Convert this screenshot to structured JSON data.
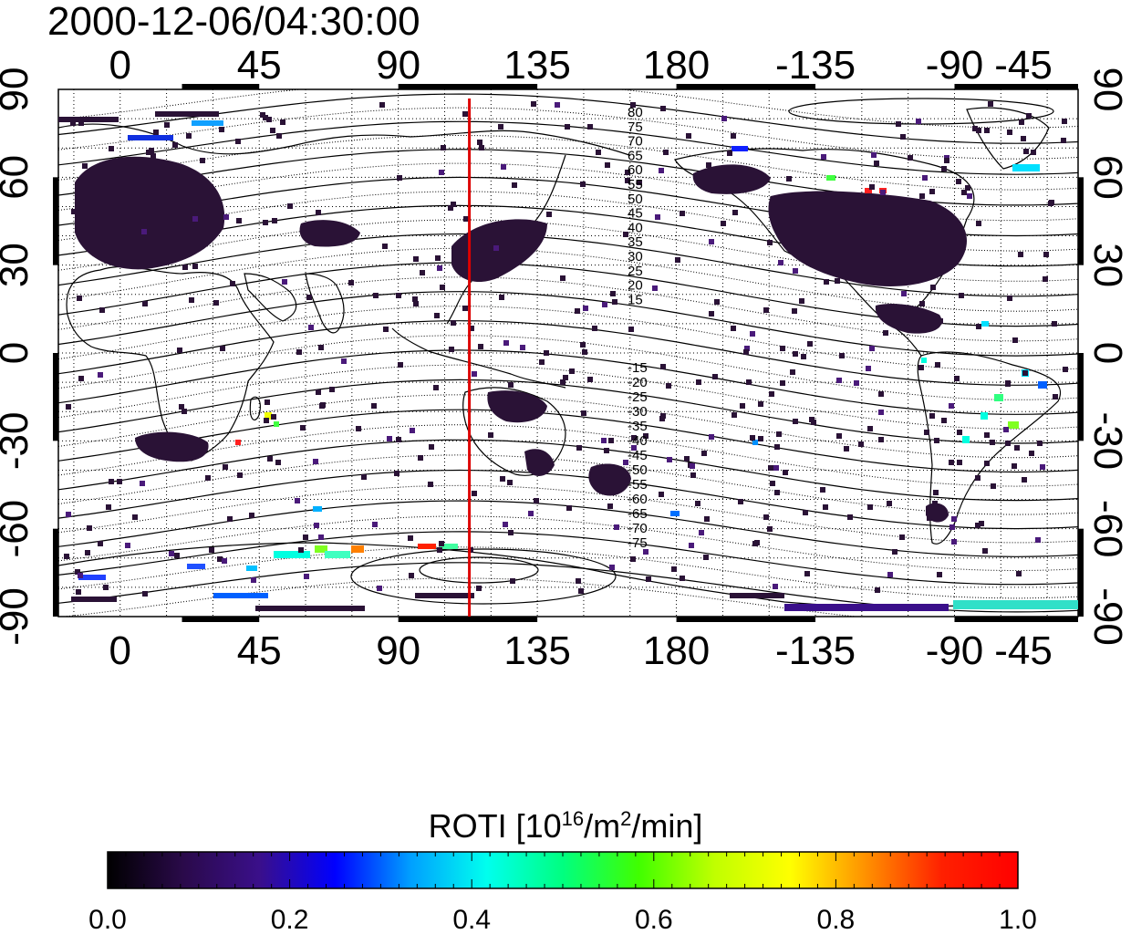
{
  "figure": {
    "timestamp": "2000-12-06/04:30:00",
    "red_meridian_lon": 113
  },
  "axes": {
    "top_ticks": [
      "0",
      "45",
      "90",
      "135",
      "180",
      "-135",
      "-90",
      "-45"
    ],
    "bottom_ticks": [
      "0",
      "45",
      "90",
      "135",
      "180",
      "-135",
      "-90",
      "-45"
    ],
    "left_ticks": [
      "90",
      "60",
      "30",
      "0",
      "-30",
      "-60",
      "-90"
    ],
    "right_ticks": [
      "90",
      "60",
      "30",
      "0",
      "-30",
      "-60",
      "-90"
    ],
    "lon_range": [
      -20,
      310
    ],
    "lat_range": [
      -90,
      90
    ]
  },
  "contours": {
    "north_labels": [
      "80",
      "75",
      "70",
      "65",
      "60",
      "55",
      "50",
      "45",
      "40",
      "35",
      "30",
      "25",
      "20",
      "15"
    ],
    "south_labels": [
      "-15",
      "-20",
      "-25",
      "-30",
      "-35",
      "-40",
      "-45",
      "-50",
      "-55",
      "-60",
      "-65",
      "-70",
      "-75"
    ]
  },
  "colorbar": {
    "title_prefix": "ROTI  [10",
    "title_sup1": "16",
    "title_mid": "/m",
    "title_sup2": "2",
    "title_suffix": "/min]",
    "ticks": [
      "0.0",
      "0.2",
      "0.4",
      "0.6",
      "0.8",
      "1.0"
    ],
    "range": [
      0.0,
      1.0
    ],
    "colors": [
      "#000000",
      "#2a0a4a",
      "#3a0f8a",
      "#0000ff",
      "#00a0ff",
      "#00ffee",
      "#00ff80",
      "#40ff00",
      "#c0ff00",
      "#ffff00",
      "#ff9000",
      "#ff2000",
      "#ff0000"
    ]
  },
  "colors": {
    "meridian": "#dd0000",
    "dark_pixel": "#2a1236",
    "purple_pixel": "#4a1a7a"
  }
}
